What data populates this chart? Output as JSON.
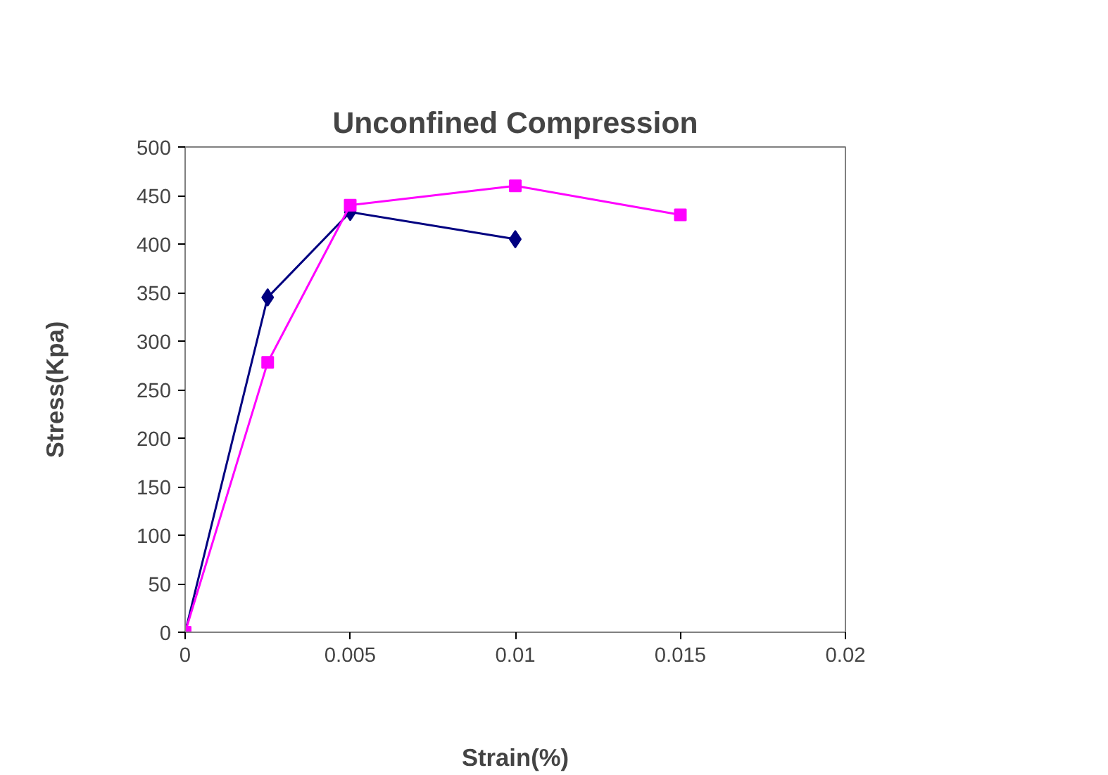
{
  "chart_data": {
    "type": "line",
    "title": "Unconfined Compression",
    "xlabel": "Strain(%)",
    "ylabel": "Stress(Kpa)",
    "xlim": [
      0,
      0.02
    ],
    "xticks": [
      0,
      0.005,
      0.01,
      0.015,
      0.02
    ],
    "ylim": [
      0,
      500
    ],
    "yticks": [
      0,
      50,
      100,
      150,
      200,
      250,
      300,
      350,
      400,
      450,
      500
    ],
    "grid": false,
    "series": [
      {
        "color": "#000080",
        "marker": "diamond",
        "x": [
          0,
          0.0025,
          0.005,
          0.01
        ],
        "values": [
          0,
          345,
          433,
          405
        ]
      },
      {
        "color": "#ff00ff",
        "marker": "square",
        "x": [
          0,
          0.0025,
          0.005,
          0.01,
          0.015
        ],
        "values": [
          0,
          278,
          440,
          460,
          430
        ]
      }
    ]
  }
}
